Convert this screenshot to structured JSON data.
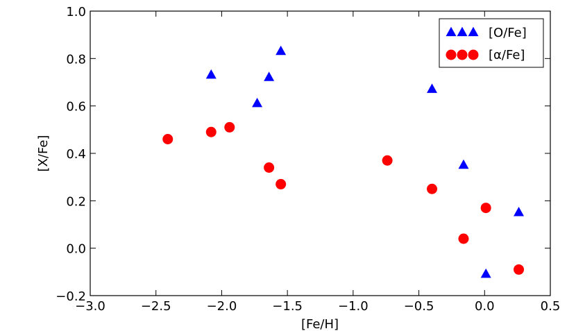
{
  "chart_data": {
    "type": "scatter",
    "title": "",
    "xlabel": "[Fe/H]",
    "ylabel": "[X/Fe]",
    "xlim": [
      -3.0,
      0.5
    ],
    "ylim": [
      -0.2,
      1.0
    ],
    "x_ticks": [
      -3.0,
      -2.5,
      -2.0,
      -1.5,
      -1.0,
      -0.5,
      0.0,
      0.5
    ],
    "x_tick_labels": [
      "−3.0",
      "−2.5",
      "−2.0",
      "−1.5",
      "−1.0",
      "−0.5",
      "0.0",
      "0.5"
    ],
    "y_ticks": [
      -0.2,
      0.0,
      0.2,
      0.4,
      0.6,
      0.8,
      1.0
    ],
    "y_tick_labels": [
      "−0.2",
      "0.0",
      "0.2",
      "0.4",
      "0.6",
      "0.8",
      "1.0"
    ],
    "grid": false,
    "legend_position": "top-right",
    "series": [
      {
        "name": "[O/Fe]",
        "marker": "triangle",
        "color": "#0000ff",
        "x": [
          -2.08,
          -1.73,
          -1.64,
          -1.55,
          -0.4,
          -0.16,
          0.01,
          0.26
        ],
        "y": [
          0.73,
          0.61,
          0.72,
          0.83,
          0.67,
          0.35,
          -0.11,
          0.15
        ]
      },
      {
        "name": "[α/Fe]",
        "marker": "circle",
        "color": "#ff0000",
        "x": [
          -2.41,
          -2.08,
          -1.94,
          -1.64,
          -1.55,
          -0.74,
          -0.4,
          -0.16,
          0.01,
          0.26
        ],
        "y": [
          0.46,
          0.49,
          0.51,
          0.34,
          0.27,
          0.37,
          0.25,
          0.04,
          0.17,
          -0.09
        ]
      }
    ]
  }
}
